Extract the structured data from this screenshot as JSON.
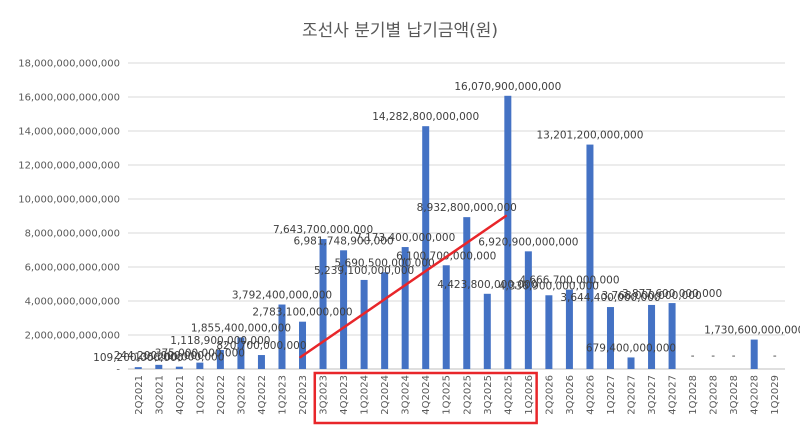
{
  "chart_data": {
    "type": "bar",
    "title": "조선사 분기별 납기금액(원)",
    "xlabel": "",
    "ylabel": "",
    "ylim": [
      0,
      18000000000000
    ],
    "yticks": [
      0,
      2000000000000,
      4000000000000,
      6000000000000,
      8000000000000,
      10000000000000,
      12000000000000,
      14000000000000,
      16000000000000,
      18000000000000
    ],
    "ytick_labels": [
      "-",
      "2,000,000,000,000",
      "4,000,000,000,000",
      "6,000,000,000,000",
      "8,000,000,000,000",
      "10,000,000,000,000",
      "12,000,000,000,000",
      "14,000,000,000,000",
      "16,000,000,000,000",
      "18,000,000,000,000"
    ],
    "grid": true,
    "bar_color": "#4472C4",
    "categories": [
      "2Q2021",
      "3Q2021",
      "4Q2021",
      "1Q2022",
      "2Q2022",
      "3Q2022",
      "4Q2022",
      "1Q2023",
      "2Q2023",
      "3Q2023",
      "4Q2023",
      "1Q2024",
      "2Q2024",
      "3Q2024",
      "4Q2024",
      "1Q2025",
      "2Q2025",
      "3Q2025",
      "4Q2025",
      "1Q2026",
      "2Q2026",
      "3Q2026",
      "4Q2026",
      "1Q2027",
      "2Q2027",
      "3Q2027",
      "4Q2027",
      "1Q2028",
      "2Q2028",
      "3Q2028",
      "4Q2028",
      "1Q2029"
    ],
    "values": [
      109200000000,
      244200000000,
      135200000000,
      375000000000,
      1118900000000,
      1855400000000,
      820700000000,
      3792400000000,
      2783100000000,
      7643700000000,
      6981748900000,
      5239100000000,
      5690500000000,
      7173400000000,
      14282800000000,
      6100700000000,
      8932800000000,
      4423800000000,
      16070900000000,
      6920900000000,
      4336900000000,
      4666700000000,
      13201200000000,
      3644400000000,
      679400000000,
      3768000000000,
      3877600000000,
      0,
      0,
      0,
      1730600000000,
      0
    ],
    "data_labels": [
      "109,200,000,000",
      "244,200,000,000",
      "135,200,000,000",
      "375,000,000,000",
      "1,118,900,000,000",
      "1,855,400,000,000",
      "820,700,000,000",
      "3,792,400,000,000",
      "2,783,100,000,000",
      "7,643,700,000,000",
      "6,981,748,900,000",
      "5,239,100,000,000",
      "5,690,500,000,000",
      "7,173,400,000,000",
      "14,282,800,000,000",
      "6,100,700,000,000",
      "8,932,800,000,000",
      "4,423,800,000,000",
      "16,070,900,000,000",
      "6,920,900,000,000",
      "4,336,900,000,000",
      "4,666,700,000,000",
      "13,201,200,000,000",
      "3,644,400,000,000",
      "679,400,000,000",
      "3,768,000,000,000",
      "3,877,600,000,000",
      "-",
      "-",
      "-",
      "1,730,600,000,000",
      "-"
    ],
    "trend_line": {
      "color": "#E8262A",
      "from_category": "2Q2023",
      "from_value": 700000000000,
      "to_category": "4Q2025",
      "to_value": 9000000000000
    },
    "highlight_box": {
      "color": "#E8262A",
      "from_category": "3Q2023",
      "to_category": "1Q2026"
    }
  }
}
